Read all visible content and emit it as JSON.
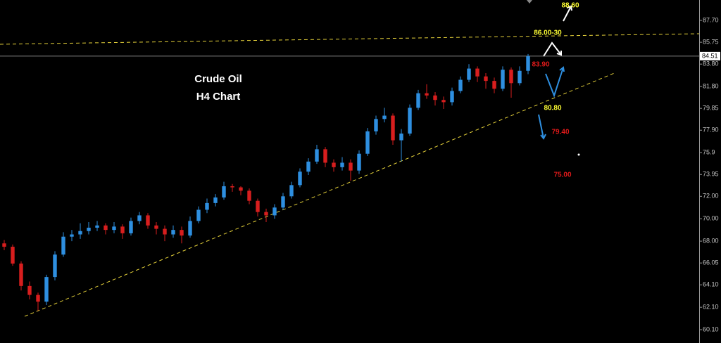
{
  "chart_data": {
    "type": "candlestick",
    "title": "Crude Oil",
    "subtitle": "H4 Chart",
    "up_color": "#2e8fe0",
    "down_color": "#d81e1e",
    "open": [
      67.8,
      67.5,
      66.0,
      64.0,
      63.2,
      62.6,
      64.8,
      66.8,
      68.4,
      68.6,
      68.9,
      69.2,
      69.4,
      69.0,
      69.3,
      68.7,
      69.8,
      70.3,
      69.4,
      69.1,
      68.6,
      69.0,
      68.5,
      69.8,
      70.8,
      71.4,
      71.9,
      72.9,
      72.8,
      72.5,
      71.6,
      70.6,
      70.3,
      71.0,
      72.0,
      73.0,
      74.2,
      75.1,
      76.2,
      75.0,
      74.6,
      75.0,
      74.3,
      75.8,
      77.8,
      78.9,
      79.2,
      77.0,
      77.6,
      79.9,
      81.2,
      81.0,
      80.6,
      80.4,
      81.4,
      82.4,
      83.4,
      82.7,
      82.3,
      81.6,
      83.3,
      82.1,
      83.2
    ],
    "high": [
      68.1,
      67.7,
      66.2,
      64.4,
      63.4,
      65.0,
      67.1,
      68.8,
      69.0,
      69.6,
      69.7,
      69.8,
      69.6,
      69.7,
      69.5,
      70.1,
      70.6,
      70.5,
      69.7,
      69.4,
      69.4,
      69.3,
      70.2,
      71.1,
      71.8,
      72.2,
      73.3,
      73.1,
      72.9,
      72.7,
      71.8,
      70.9,
      71.3,
      72.3,
      73.3,
      74.5,
      75.4,
      76.6,
      76.4,
      75.3,
      75.5,
      75.3,
      76.1,
      78.1,
      79.2,
      79.9,
      79.4,
      78.0,
      80.2,
      81.5,
      82.0,
      81.3,
      80.9,
      81.7,
      82.7,
      83.8,
      83.6,
      83.0,
      82.6,
      83.6,
      83.5,
      83.6,
      84.7
    ],
    "low": [
      67.2,
      65.8,
      63.6,
      62.8,
      61.8,
      62.3,
      64.5,
      66.6,
      68.0,
      68.2,
      68.6,
      68.9,
      68.6,
      68.7,
      68.2,
      68.5,
      69.5,
      69.1,
      68.6,
      68.0,
      68.3,
      67.8,
      68.3,
      69.6,
      70.5,
      71.1,
      71.7,
      72.4,
      72.1,
      71.3,
      70.2,
      69.7,
      70.0,
      70.8,
      71.8,
      72.8,
      73.9,
      74.9,
      74.6,
      74.2,
      74.3,
      73.4,
      74.0,
      75.6,
      77.5,
      78.6,
      76.6,
      75.1,
      77.4,
      79.7,
      80.7,
      80.1,
      79.8,
      80.1,
      81.2,
      82.2,
      82.2,
      81.6,
      81.2,
      81.4,
      80.8,
      81.9,
      82.9
    ],
    "close": [
      67.5,
      66.0,
      64.0,
      63.2,
      62.6,
      64.8,
      66.8,
      68.4,
      68.6,
      68.9,
      69.2,
      69.4,
      69.0,
      69.3,
      68.7,
      69.8,
      70.3,
      69.4,
      69.1,
      68.6,
      69.0,
      68.5,
      69.8,
      70.8,
      71.4,
      71.9,
      72.9,
      72.8,
      72.5,
      71.6,
      70.6,
      70.3,
      71.0,
      72.0,
      73.0,
      74.2,
      75.1,
      76.2,
      75.0,
      74.6,
      75.0,
      74.3,
      75.8,
      77.8,
      78.9,
      79.2,
      77.0,
      77.6,
      79.9,
      81.2,
      81.0,
      80.6,
      80.4,
      81.4,
      82.4,
      83.4,
      82.7,
      82.3,
      81.6,
      83.3,
      82.1,
      83.2,
      84.5
    ],
    "xlim": [
      -0.5,
      82.25
    ],
    "ylim": [
      58.91,
      89.52
    ],
    "yticks": [
      {
        "value": 60.1,
        "label": "60.10"
      },
      {
        "value": 62.1,
        "label": "62.10"
      },
      {
        "value": 64.1,
        "label": "64.10"
      },
      {
        "value": 66.05,
        "label": "66.05"
      },
      {
        "value": 68.0,
        "label": "68.00"
      },
      {
        "value": 70.0,
        "label": "70.00"
      },
      {
        "value": 72.0,
        "label": "72.00"
      },
      73.95,
      75.9,
      {
        "value": 77.9,
        "label": "77.90"
      },
      79.85,
      {
        "value": 81.8,
        "label": "81.80"
      },
      {
        "value": 83.8,
        "label": "83.80"
      },
      85.75,
      {
        "value": 87.7,
        "label": "87.70"
      }
    ],
    "last_price": 84.51,
    "trendlines": [
      {
        "color": "#e6d23a",
        "x": [
          2.42,
          72.42
        ],
        "y": [
          61.29,
          83.06
        ]
      },
      {
        "color": "#e6d23a",
        "x": [
          -0.5,
          82.25
        ],
        "y": [
          85.57,
          86.51
        ]
      }
    ],
    "annotations": [
      {
        "text": "88.60",
        "color": "#ffff33"
      },
      {
        "text": "86.00-30",
        "color": "#ffff33"
      },
      {
        "text": "83.90",
        "color": "#e01a1a"
      },
      {
        "text": "80.80",
        "color": "#ffff33"
      },
      {
        "text": "79.40",
        "color": "#e01a1a"
      },
      {
        "text": "75.00",
        "color": "#e01a1a"
      }
    ]
  }
}
